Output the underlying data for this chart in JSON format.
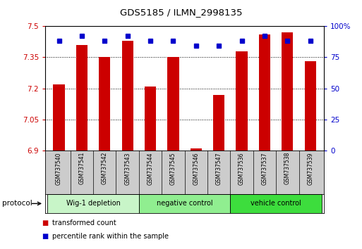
{
  "title": "GDS5185 / ILMN_2998135",
  "samples": [
    "GSM737540",
    "GSM737541",
    "GSM737542",
    "GSM737543",
    "GSM737544",
    "GSM737545",
    "GSM737546",
    "GSM737547",
    "GSM737536",
    "GSM737537",
    "GSM737538",
    "GSM737539"
  ],
  "red_values": [
    7.22,
    7.41,
    7.35,
    7.43,
    7.21,
    7.35,
    6.91,
    7.17,
    7.38,
    7.46,
    7.47,
    7.33
  ],
  "blue_values": [
    88,
    92,
    88,
    92,
    88,
    88,
    84,
    84,
    88,
    92,
    88,
    88
  ],
  "ylim_left": [
    6.9,
    7.5
  ],
  "ylim_right": [
    0,
    100
  ],
  "yticks_left": [
    6.9,
    7.05,
    7.2,
    7.35,
    7.5
  ],
  "yticks_right": [
    0,
    25,
    50,
    75,
    100
  ],
  "ytick_labels_left": [
    "6.9",
    "7.05",
    "7.2",
    "7.35",
    "7.5"
  ],
  "ytick_labels_right": [
    "0",
    "25",
    "50",
    "75",
    "100%"
  ],
  "groups": [
    {
      "label": "Wig-1 depletion",
      "indices": [
        0,
        1,
        2,
        3
      ],
      "color": "#c8f5c8"
    },
    {
      "label": "negative control",
      "indices": [
        4,
        5,
        6,
        7
      ],
      "color": "#90ee90"
    },
    {
      "label": "vehicle control",
      "indices": [
        8,
        9,
        10,
        11
      ],
      "color": "#3ddd3d"
    }
  ],
  "sample_bg": "#cccccc",
  "bar_color": "#cc0000",
  "dot_color": "#0000cc",
  "bar_width": 0.5,
  "protocol_label": "protocol",
  "legend1_label": "transformed count",
  "legend2_label": "percentile rank within the sample"
}
